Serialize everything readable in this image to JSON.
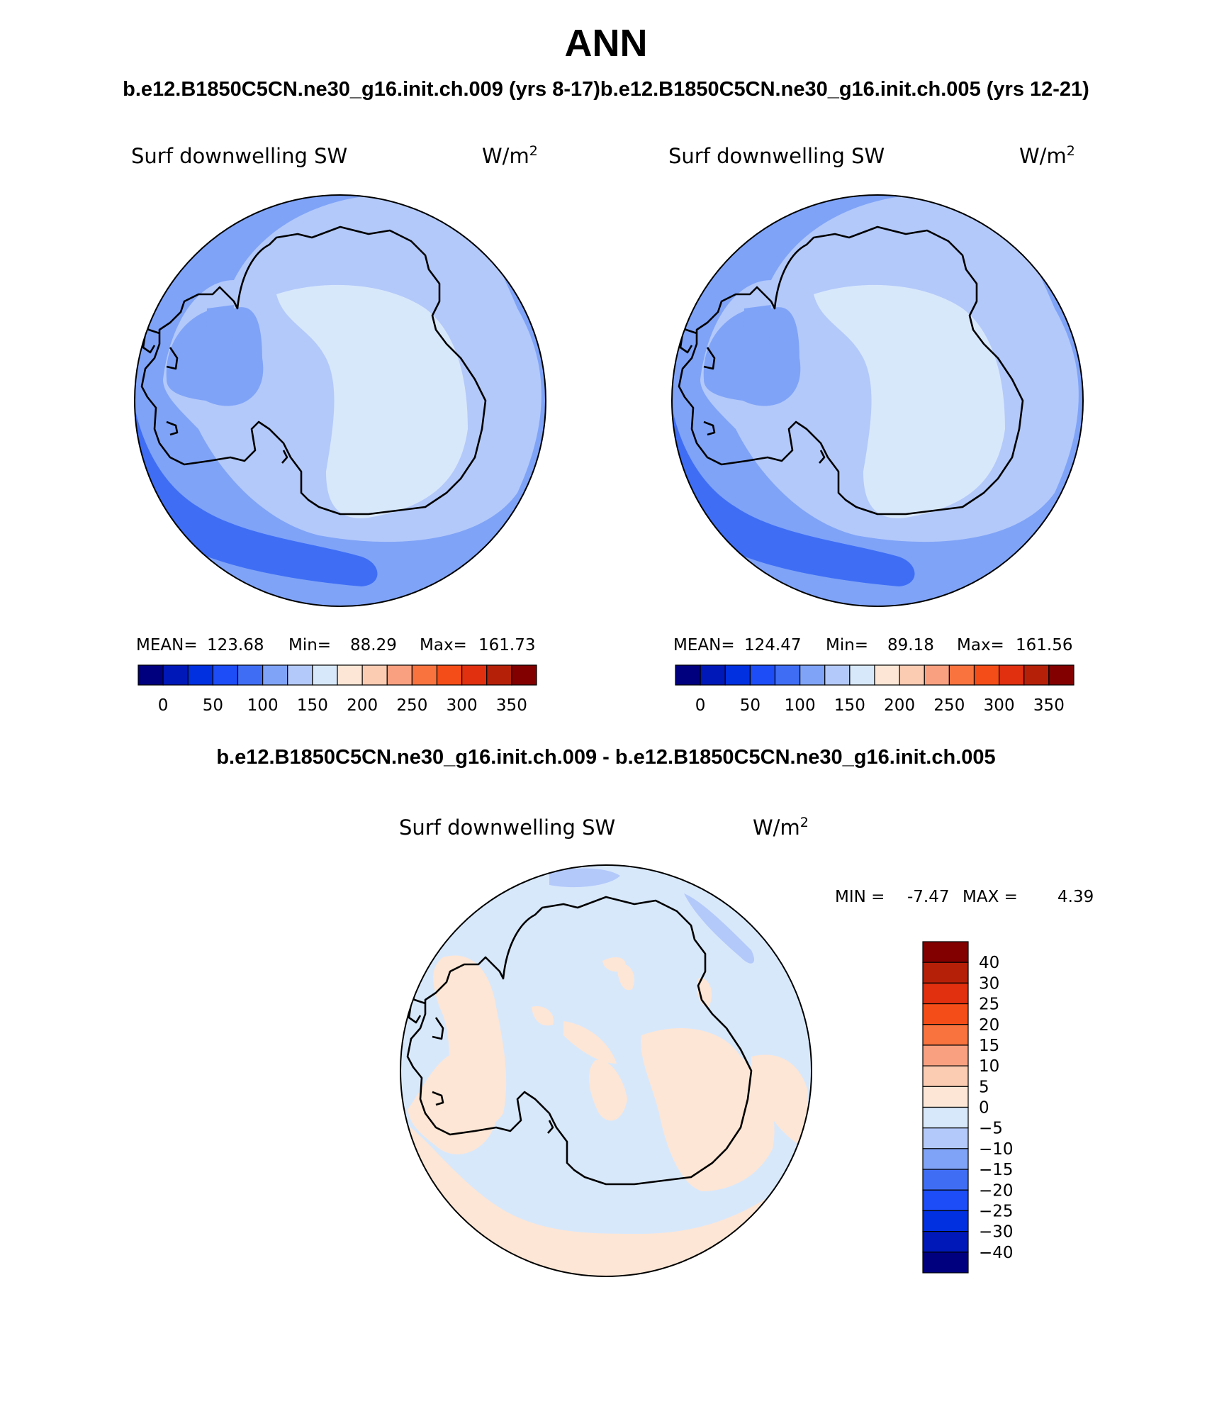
{
  "figure": {
    "title": "ANN",
    "case_titles": "b.e12.B1850C5CN.ne30_g16.init.ch.009 (yrs 8-17)b.e12.B1850C5CN.ne30_g16.init.ch.005 (yrs 12-21)",
    "diff_title": "b.e12.B1850C5CN.ne30_g16.init.ch.009 - b.e12.B1850C5CN.ne30_g16.init.ch.005"
  },
  "panels": [
    {
      "variable": "Surf downwelling SW",
      "units": "W/m",
      "units_exp": "2",
      "stats": {
        "mean": "123.68",
        "min": "88.29",
        "max": "161.73"
      }
    },
    {
      "variable": "Surf downwelling SW",
      "units": "W/m",
      "units_exp": "2",
      "stats": {
        "mean": "124.47",
        "min": "89.18",
        "max": "161.56"
      }
    }
  ],
  "stat_labels": {
    "mean": "MEAN=",
    "min": "Min=",
    "max": "Max="
  },
  "abs_colorbar": {
    "colors": [
      "#00007f",
      "#0018b8",
      "#0030e0",
      "#1c4df7",
      "#3f6ef5",
      "#7fa3f7",
      "#b3c9fa",
      "#d8e8fb",
      "#fde6d5",
      "#fbcbb2",
      "#f8a080",
      "#f8733e",
      "#f54d17",
      "#e03010",
      "#b52008",
      "#820000"
    ],
    "labels": [
      "0",
      "50",
      "100",
      "150",
      "200",
      "250",
      "300",
      "350"
    ]
  },
  "diff_panel": {
    "variable": "Surf downwelling SW",
    "units": "W/m",
    "units_exp": "2",
    "min_label": "MIN =",
    "min": "-7.47",
    "max_label": "MAX =",
    "max": "4.39"
  },
  "diff_colorbar": {
    "colors": [
      "#820000",
      "#b52008",
      "#e03010",
      "#f54d17",
      "#f8733e",
      "#f8a080",
      "#fbcbb2",
      "#fde6d5",
      "#d8e8fb",
      "#b3c9fa",
      "#7fa3f7",
      "#3f6ef5",
      "#1c4df7",
      "#0030e0",
      "#0018b8",
      "#00007f"
    ],
    "labels": [
      "40",
      "30",
      "25",
      "20",
      "15",
      "10",
      "5",
      "0",
      "−5",
      "−10",
      "−15",
      "−20",
      "−25",
      "−30",
      "−40"
    ]
  }
}
